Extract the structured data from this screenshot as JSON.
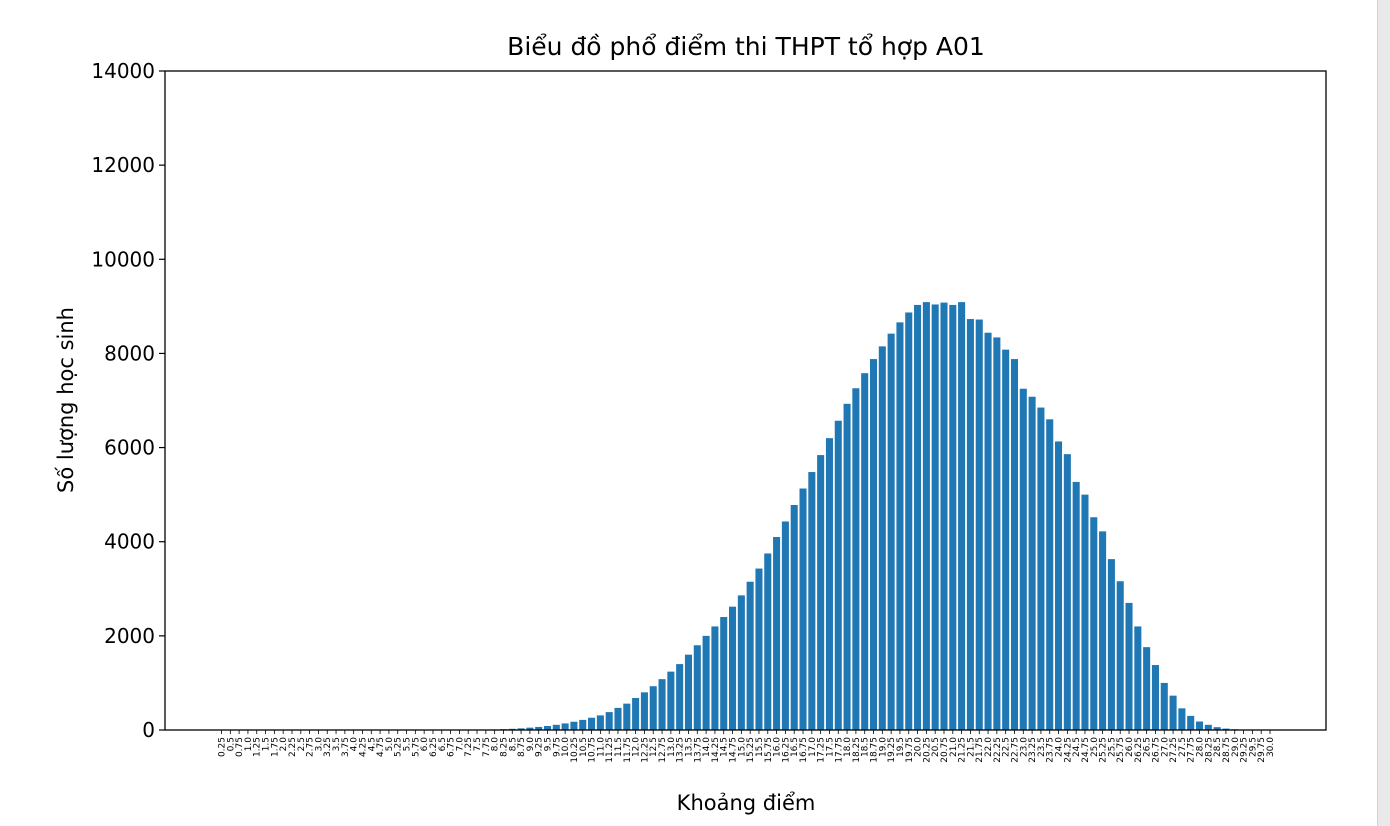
{
  "chart_data": {
    "type": "bar",
    "title": "Biểu đồ phổ điểm thi THPT tổ hợp A01",
    "xlabel": "Khoảng điểm",
    "ylabel": "Số lượng học sinh",
    "ylim": [
      0,
      14000
    ],
    "yticks": [
      0,
      2000,
      4000,
      6000,
      8000,
      10000,
      12000,
      14000
    ],
    "grid": false,
    "bar_color": "#1f77b4",
    "categories": [
      "0.25",
      "0.5",
      "0.75",
      "1.0",
      "1.25",
      "1.5",
      "1.75",
      "2.0",
      "2.25",
      "2.5",
      "2.75",
      "3.0",
      "3.25",
      "3.5",
      "3.75",
      "4.0",
      "4.25",
      "4.5",
      "4.75",
      "5.0",
      "5.25",
      "5.5",
      "5.75",
      "6.0",
      "6.25",
      "6.5",
      "6.75",
      "7.0",
      "7.25",
      "7.5",
      "7.75",
      "8.0",
      "8.25",
      "8.5",
      "8.75",
      "9.0",
      "9.25",
      "9.5",
      "9.75",
      "10.0",
      "10.25",
      "10.5",
      "10.75",
      "11.0",
      "11.25",
      "11.5",
      "11.75",
      "12.0",
      "12.25",
      "12.5",
      "12.75",
      "13.0",
      "13.25",
      "13.5",
      "13.75",
      "14.0",
      "14.25",
      "14.5",
      "14.75",
      "15.0",
      "15.25",
      "15.5",
      "15.75",
      "16.0",
      "16.25",
      "16.5",
      "16.75",
      "17.0",
      "17.25",
      "17.5",
      "17.75",
      "18.0",
      "18.25",
      "18.5",
      "18.75",
      "19.0",
      "19.25",
      "19.5",
      "19.75",
      "20.0",
      "20.25",
      "20.5",
      "20.75",
      "21.0",
      "21.25",
      "21.5",
      "21.75",
      "22.0",
      "22.25",
      "22.5",
      "22.75",
      "23.0",
      "23.25",
      "23.5",
      "23.75",
      "24.0",
      "24.25",
      "24.5",
      "24.75",
      "25.0",
      "25.25",
      "25.5",
      "25.75",
      "26.0",
      "26.25",
      "26.5",
      "26.75",
      "27.0",
      "27.25",
      "27.5",
      "27.75",
      "28.0",
      "28.25",
      "28.5",
      "28.75",
      "29.0",
      "29.25",
      "29.5",
      "29.75",
      "30.0"
    ],
    "values": [
      0,
      0,
      0,
      0,
      0,
      0,
      0,
      0,
      0,
      0,
      0,
      0,
      0,
      0,
      0,
      0,
      0,
      0,
      0,
      0,
      0,
      0,
      0,
      0,
      0,
      0,
      1,
      2,
      3,
      5,
      8,
      12,
      18,
      25,
      35,
      50,
      65,
      85,
      110,
      140,
      175,
      215,
      260,
      310,
      380,
      470,
      560,
      680,
      800,
      930,
      1080,
      1240,
      1400,
      1600,
      1800,
      2000,
      2200,
      2400,
      2620,
      2860,
      3150,
      3430,
      3750,
      4100,
      4430,
      4780,
      5130,
      5480,
      5840,
      6200,
      6570,
      6930,
      7260,
      7580,
      7880,
      8150,
      8420,
      8660,
      8870,
      9030,
      9090,
      9040,
      9080,
      9030,
      9090,
      8730,
      8720,
      8440,
      8340,
      8080,
      7880,
      7250,
      7080,
      6850,
      6600,
      6130,
      5860,
      5270,
      5000,
      4520,
      4220,
      3630,
      3160,
      2700,
      2200,
      1760,
      1380,
      1000,
      730,
      460,
      300,
      180,
      110,
      60,
      30,
      15,
      6,
      2,
      1,
      0
    ]
  }
}
